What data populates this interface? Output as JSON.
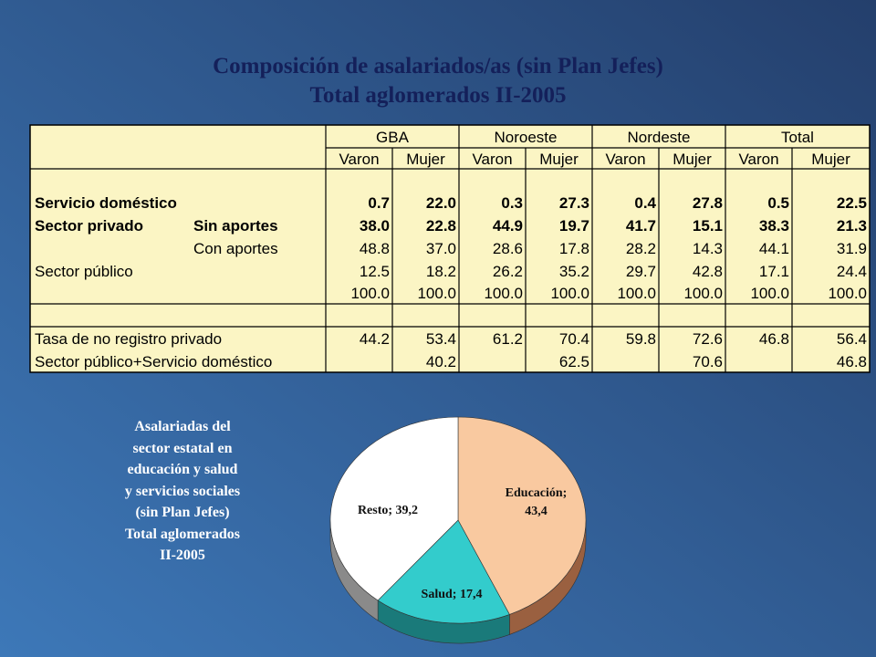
{
  "header": {
    "title_lines": [
      "Composición de asalariados/as (sin Plan Jefes)",
      "Total aglomerados II-2005"
    ]
  },
  "table": {
    "groups": [
      "GBA",
      "Noroeste",
      "Nordeste",
      "Total"
    ],
    "subheaders": [
      "Varon",
      "Mujer",
      "Varon",
      "Mujer",
      "Varon",
      "Mujer",
      "Varon",
      "Mujer"
    ],
    "rows": [
      {
        "label": "Servicio doméstico",
        "bold": true,
        "values": [
          "0.7",
          "22.0",
          "0.3",
          "27.3",
          "0.4",
          "27.8",
          "0.5",
          "22.5"
        ]
      },
      {
        "label": "Sector privado",
        "sublabel": "Sin aportes",
        "bold": true,
        "values": [
          "38.0",
          "22.8",
          "44.9",
          "19.7",
          "41.7",
          "15.1",
          "38.3",
          "21.3"
        ]
      },
      {
        "sublabel": "Con aportes",
        "bold": false,
        "values": [
          "48.8",
          "37.0",
          "28.6",
          "17.8",
          "28.2",
          "14.3",
          "44.1",
          "31.9"
        ]
      },
      {
        "label": "Sector público",
        "bold": false,
        "values": [
          "12.5",
          "18.2",
          "26.2",
          "35.2",
          "29.7",
          "42.8",
          "17.1",
          "24.4"
        ]
      },
      {
        "bold": false,
        "values": [
          "100.0",
          "100.0",
          "100.0",
          "100.0",
          "100.0",
          "100.0",
          "100.0",
          "100.0"
        ]
      },
      {
        "label": "Tasa de no registro privado",
        "bold": false,
        "values": [
          "44.2",
          "53.4",
          "61.2",
          "70.4",
          "59.8",
          "72.6",
          "46.8",
          "56.4"
        ]
      },
      {
        "label": "Sector público+Servicio doméstico",
        "bold": false,
        "values": [
          null,
          "40.2",
          null,
          "62.5",
          null,
          "70.6",
          null,
          "46.8"
        ]
      }
    ]
  },
  "chart_data": {
    "type": "pie",
    "title_lines": [
      "Asalariadas del",
      "sector estatal en",
      "educación y salud",
      "y servicios sociales",
      "(sin Plan Jefes)",
      "Total aglomerados",
      "II-2005"
    ],
    "values": [
      43.4,
      17.4,
      39.2
    ],
    "value_labels": [
      "Educación; 43,4",
      "Salud; 17,4",
      "Resto; 39,2"
    ],
    "colors": [
      "#f9c9a0",
      "#33cccc",
      "#ffffff"
    ],
    "side_colors": [
      "#9a6040",
      "#1a7a7a",
      "#8a8a8a"
    ]
  }
}
